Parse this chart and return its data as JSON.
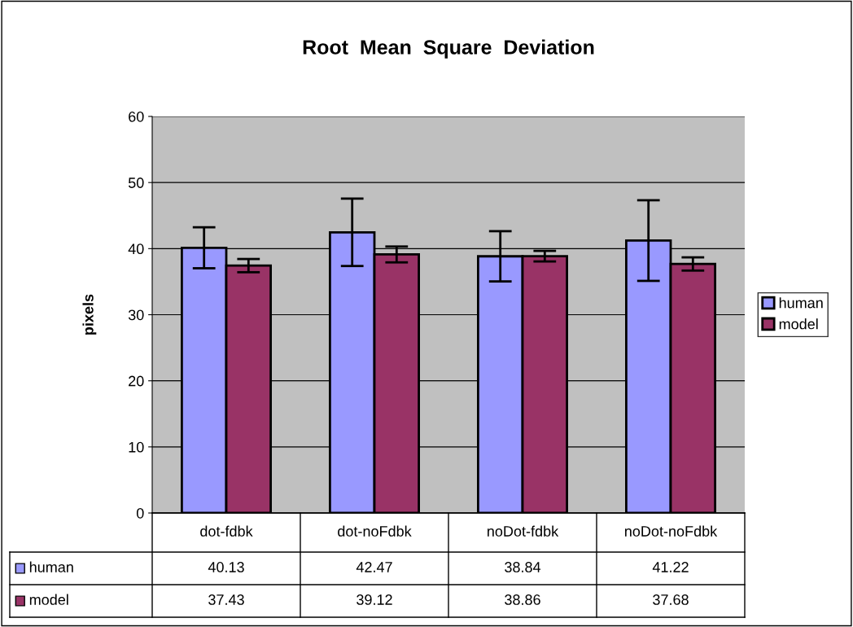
{
  "chart_data": {
    "type": "bar",
    "title": "Root  Mean  Square  Deviation",
    "ylabel": "pixels",
    "categories": [
      "dot-fdbk",
      "dot-noFdbk",
      "noDot-fdbk",
      "noDot-noFdbk"
    ],
    "series": [
      {
        "name": "human",
        "color": "#9999ff",
        "values": [
          40.13,
          42.47,
          38.84,
          41.22
        ],
        "errors": [
          3.1,
          5.1,
          3.8,
          6.1
        ]
      },
      {
        "name": "model",
        "color": "#993366",
        "values": [
          37.43,
          39.12,
          38.86,
          37.68
        ],
        "errors": [
          1.0,
          1.2,
          0.8,
          1.0
        ]
      }
    ],
    "ylim": [
      0,
      60
    ],
    "yticks": [
      0,
      10,
      20,
      30,
      40,
      50,
      60
    ],
    "grid": "y",
    "legend": "right",
    "data_labels": true
  }
}
